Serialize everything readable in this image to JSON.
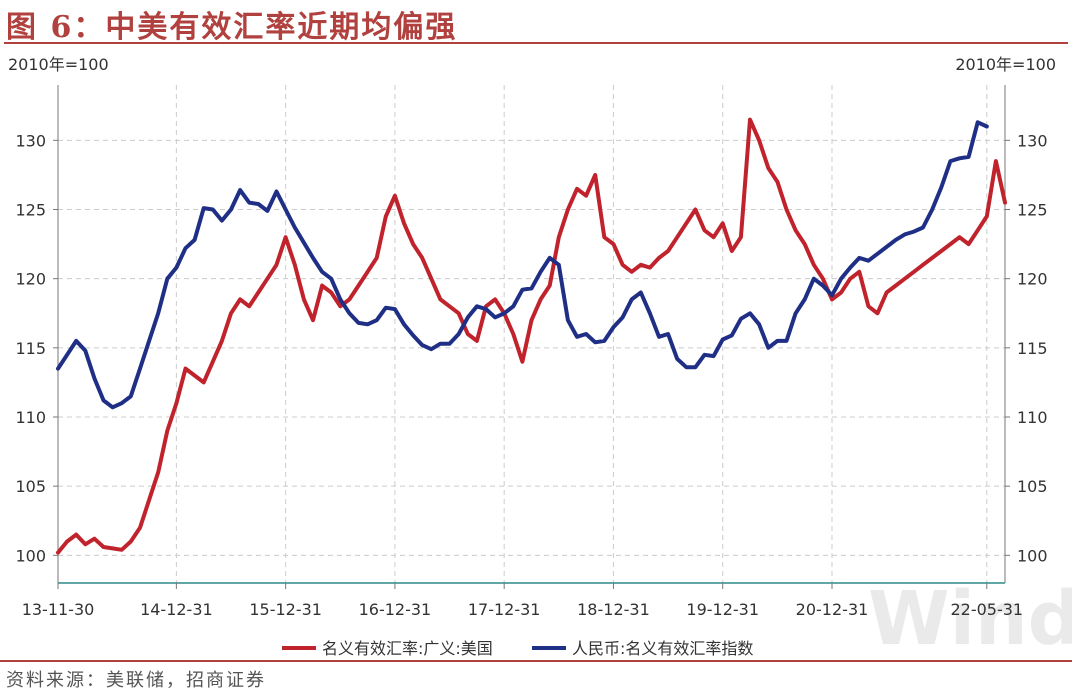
{
  "title": "图 6：中美有效汇率近期均偏强",
  "source": "资料来源：美联储，招商证券",
  "watermark": "Wind",
  "chart_data": {
    "type": "line",
    "left_unit": "2010年=100",
    "right_unit": "2010年=100",
    "ylim": [
      98,
      134
    ],
    "yticks": [
      100,
      105,
      110,
      115,
      120,
      125,
      130
    ],
    "x_tick_labels": [
      "13-11-30",
      "14-12-31",
      "15-12-31",
      "16-12-31",
      "17-12-31",
      "18-12-31",
      "19-12-31",
      "20-12-31",
      "22-05-31"
    ],
    "x_tick_months": [
      0,
      13,
      25,
      37,
      49,
      61,
      73,
      85,
      102
    ],
    "grid": true,
    "legend_position": "bottom",
    "series": [
      {
        "name": "名义有效汇率:广义:美国",
        "color": "#c0232c",
        "points": [
          [
            0,
            100.2
          ],
          [
            1,
            101.0
          ],
          [
            2,
            101.5
          ],
          [
            3,
            100.8
          ],
          [
            4,
            101.2
          ],
          [
            5,
            100.6
          ],
          [
            6,
            100.5
          ],
          [
            7,
            100.4
          ],
          [
            8,
            101.0
          ],
          [
            9,
            102.0
          ],
          [
            10,
            104.0
          ],
          [
            11,
            106.0
          ],
          [
            12,
            109.0
          ],
          [
            13,
            111.0
          ],
          [
            14,
            113.5
          ],
          [
            15,
            113.0
          ],
          [
            16,
            112.5
          ],
          [
            17,
            114.0
          ],
          [
            18,
            115.5
          ],
          [
            19,
            117.5
          ],
          [
            20,
            118.5
          ],
          [
            21,
            118.0
          ],
          [
            22,
            119.0
          ],
          [
            23,
            120.0
          ],
          [
            24,
            121.0
          ],
          [
            25,
            123.0
          ],
          [
            26,
            121.0
          ],
          [
            27,
            118.5
          ],
          [
            28,
            117.0
          ],
          [
            29,
            119.5
          ],
          [
            30,
            119.0
          ],
          [
            31,
            118.0
          ],
          [
            32,
            118.5
          ],
          [
            33,
            119.5
          ],
          [
            34,
            120.5
          ],
          [
            35,
            121.5
          ],
          [
            36,
            124.5
          ],
          [
            37,
            126.0
          ],
          [
            38,
            124.0
          ],
          [
            39,
            122.5
          ],
          [
            40,
            121.5
          ],
          [
            41,
            120.0
          ],
          [
            42,
            118.5
          ],
          [
            43,
            118.0
          ],
          [
            44,
            117.5
          ],
          [
            45,
            116.0
          ],
          [
            46,
            115.5
          ],
          [
            47,
            118.0
          ],
          [
            48,
            118.5
          ],
          [
            49,
            117.5
          ],
          [
            50,
            116.0
          ],
          [
            51,
            114.0
          ],
          [
            52,
            117.0
          ],
          [
            53,
            118.5
          ],
          [
            54,
            119.5
          ],
          [
            55,
            123.0
          ],
          [
            56,
            125.0
          ],
          [
            57,
            126.5
          ],
          [
            58,
            126.0
          ],
          [
            59,
            127.5
          ],
          [
            60,
            123.0
          ],
          [
            61,
            122.5
          ],
          [
            62,
            121.0
          ],
          [
            63,
            120.5
          ],
          [
            64,
            121.0
          ],
          [
            65,
            120.8
          ],
          [
            66,
            121.5
          ],
          [
            67,
            122.0
          ],
          [
            68,
            123.0
          ],
          [
            69,
            124.0
          ],
          [
            70,
            125.0
          ],
          [
            71,
            123.5
          ],
          [
            72,
            123.0
          ],
          [
            73,
            124.0
          ],
          [
            74,
            122.0
          ],
          [
            75,
            123.0
          ],
          [
            76,
            131.5
          ],
          [
            77,
            130.0
          ],
          [
            78,
            128.0
          ],
          [
            79,
            127.0
          ],
          [
            80,
            125.0
          ],
          [
            81,
            123.5
          ],
          [
            82,
            122.5
          ],
          [
            83,
            121.0
          ],
          [
            84,
            120.0
          ],
          [
            85,
            118.5
          ],
          [
            86,
            119.0
          ],
          [
            87,
            120.0
          ],
          [
            88,
            120.5
          ],
          [
            89,
            118.0
          ],
          [
            90,
            117.5
          ],
          [
            91,
            119.0
          ],
          [
            92,
            119.5
          ],
          [
            93,
            120.0
          ],
          [
            94,
            120.5
          ],
          [
            95,
            121.0
          ],
          [
            96,
            121.5
          ],
          [
            97,
            122.0
          ],
          [
            98,
            122.5
          ],
          [
            99,
            123.0
          ],
          [
            100,
            122.5
          ],
          [
            101,
            123.5
          ],
          [
            102,
            124.5
          ],
          [
            103,
            128.5
          ],
          [
            104,
            125.5
          ]
        ]
      },
      {
        "name": "人民币:名义有效汇率指数",
        "color": "#1f2f86",
        "points": [
          [
            0,
            113.5
          ],
          [
            1,
            114.5
          ],
          [
            2,
            115.5
          ],
          [
            3,
            114.8
          ],
          [
            4,
            112.8
          ],
          [
            5,
            111.2
          ],
          [
            6,
            110.7
          ],
          [
            7,
            111.0
          ],
          [
            8,
            111.5
          ],
          [
            9,
            113.5
          ],
          [
            10,
            115.5
          ],
          [
            11,
            117.5
          ],
          [
            12,
            120.0
          ],
          [
            13,
            120.8
          ],
          [
            14,
            122.2
          ],
          [
            15,
            122.8
          ],
          [
            16,
            125.1
          ],
          [
            17,
            125.0
          ],
          [
            18,
            124.2
          ],
          [
            19,
            125.0
          ],
          [
            20,
            126.4
          ],
          [
            21,
            125.5
          ],
          [
            22,
            125.4
          ],
          [
            23,
            124.9
          ],
          [
            24,
            126.3
          ],
          [
            25,
            125.0
          ],
          [
            26,
            123.7
          ],
          [
            27,
            122.6
          ],
          [
            28,
            121.5
          ],
          [
            29,
            120.5
          ],
          [
            30,
            120.0
          ],
          [
            31,
            118.5
          ],
          [
            32,
            117.5
          ],
          [
            33,
            116.8
          ],
          [
            34,
            116.7
          ],
          [
            35,
            117.0
          ],
          [
            36,
            117.9
          ],
          [
            37,
            117.8
          ],
          [
            38,
            116.7
          ],
          [
            39,
            115.9
          ],
          [
            40,
            115.2
          ],
          [
            41,
            114.9
          ],
          [
            42,
            115.3
          ],
          [
            43,
            115.3
          ],
          [
            44,
            116.0
          ],
          [
            45,
            117.2
          ],
          [
            46,
            118.0
          ],
          [
            47,
            117.8
          ],
          [
            48,
            117.2
          ],
          [
            49,
            117.5
          ],
          [
            50,
            118.0
          ],
          [
            51,
            119.2
          ],
          [
            52,
            119.3
          ],
          [
            53,
            120.5
          ],
          [
            54,
            121.5
          ],
          [
            55,
            121.0
          ],
          [
            56,
            117.0
          ],
          [
            57,
            115.8
          ],
          [
            58,
            116.0
          ],
          [
            59,
            115.4
          ],
          [
            60,
            115.5
          ],
          [
            61,
            116.5
          ],
          [
            62,
            117.2
          ],
          [
            63,
            118.5
          ],
          [
            64,
            119.0
          ],
          [
            65,
            117.5
          ],
          [
            66,
            115.8
          ],
          [
            67,
            116.0
          ],
          [
            68,
            114.2
          ],
          [
            69,
            113.6
          ],
          [
            70,
            113.6
          ],
          [
            71,
            114.5
          ],
          [
            72,
            114.4
          ],
          [
            73,
            115.6
          ],
          [
            74,
            115.9
          ],
          [
            75,
            117.1
          ],
          [
            76,
            117.5
          ],
          [
            77,
            116.7
          ],
          [
            78,
            115.0
          ],
          [
            79,
            115.5
          ],
          [
            80,
            115.5
          ],
          [
            81,
            117.5
          ],
          [
            82,
            118.5
          ],
          [
            83,
            120.0
          ],
          [
            84,
            119.5
          ],
          [
            85,
            118.8
          ],
          [
            86,
            120.0
          ],
          [
            87,
            120.8
          ],
          [
            88,
            121.5
          ],
          [
            89,
            121.3
          ],
          [
            90,
            121.8
          ],
          [
            91,
            122.3
          ],
          [
            92,
            122.8
          ],
          [
            93,
            123.2
          ],
          [
            94,
            123.4
          ],
          [
            95,
            123.7
          ],
          [
            96,
            125.0
          ],
          [
            97,
            126.6
          ],
          [
            98,
            128.5
          ],
          [
            99,
            128.7
          ],
          [
            100,
            128.8
          ],
          [
            101,
            131.3
          ],
          [
            102,
            131.0
          ]
        ]
      }
    ]
  }
}
